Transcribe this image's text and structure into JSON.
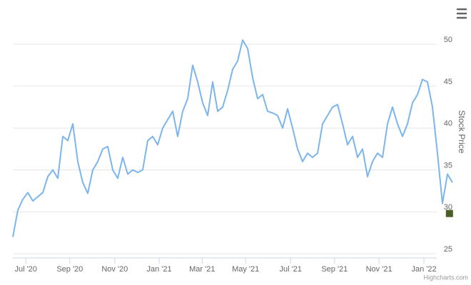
{
  "chart_data": {
    "type": "line",
    "y_axis_title": "Stock Price",
    "credits": "Highcharts.com",
    "grid": true,
    "xlim": [
      0,
      88
    ],
    "xticks": [
      {
        "value": 2.6,
        "label": "Jul '20"
      },
      {
        "value": 11.4,
        "label": "Sep '20"
      },
      {
        "value": 20.4,
        "label": "Nov '20"
      },
      {
        "value": 29.3,
        "label": "Jan '21"
      },
      {
        "value": 37.9,
        "label": "Mar '21"
      },
      {
        "value": 46.6,
        "label": "May '21"
      },
      {
        "value": 55.6,
        "label": "Jul '21"
      },
      {
        "value": 64.4,
        "label": "Sep '21"
      },
      {
        "value": 73.3,
        "label": "Nov '21"
      },
      {
        "value": 82.3,
        "label": "Jan '22"
      }
    ],
    "ylim": [
      24.5,
      54.6
    ],
    "yticks": [
      25,
      30,
      35,
      40,
      45,
      50
    ],
    "series": [
      {
        "color": "#7cb5ec",
        "values": [
          27,
          30.2,
          31.5,
          32.3,
          31.3,
          31.8,
          32.3,
          34.2,
          35,
          34,
          39,
          38.5,
          40.5,
          36,
          33.5,
          32.2,
          35,
          36,
          37.5,
          37.8,
          35,
          34,
          36.5,
          34.5,
          35,
          34.7,
          35,
          38.5,
          39,
          38,
          40,
          41,
          42,
          39,
          42,
          43.5,
          47.5,
          45.5,
          43,
          41.5,
          45.5,
          42,
          42.5,
          44.5,
          47,
          48,
          50.5,
          49.5,
          46,
          43.5,
          44,
          42,
          41.8,
          41.5,
          40,
          42.3,
          40,
          37.5,
          36,
          37,
          36.5,
          37,
          40.5,
          41.5,
          42.5,
          42.8,
          40.5,
          38,
          39,
          36.5,
          37.5,
          34.2,
          36,
          37,
          36.5,
          40.5,
          42.5,
          40.5,
          39,
          40.5,
          43,
          44,
          45.8,
          45.5,
          42.5,
          37,
          31,
          34.5,
          33.5
        ]
      }
    ],
    "marker": {
      "x": 87.4,
      "value": 29.8,
      "color": "#4b5e23"
    }
  }
}
